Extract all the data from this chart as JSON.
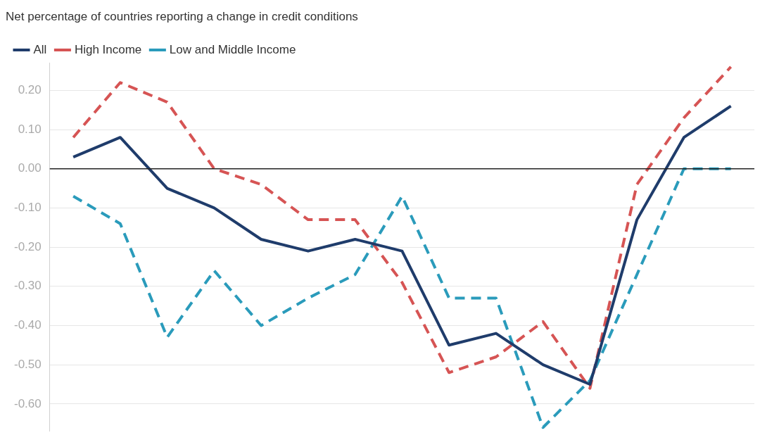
{
  "chart_data": {
    "type": "line",
    "title": "Net percentage of countries reporting a change in credit conditions",
    "categories": [
      null,
      null,
      null,
      null,
      null,
      null,
      null,
      null,
      null,
      null,
      null,
      null,
      null,
      null,
      null
    ],
    "series": [
      {
        "name": "All",
        "color": "#1f3c6b",
        "line_style": "solid",
        "values": [
          0.03,
          0.08,
          -0.05,
          -0.1,
          -0.18,
          -0.21,
          -0.18,
          -0.21,
          -0.45,
          -0.42,
          -0.5,
          -0.55,
          -0.13,
          0.08,
          0.16
        ]
      },
      {
        "name": "High Income",
        "color": "#d65454",
        "line_style": "dashed",
        "values": [
          0.08,
          0.22,
          0.17,
          0.0,
          -0.04,
          -0.13,
          -0.13,
          -0.29,
          -0.52,
          -0.48,
          -0.39,
          -0.56,
          -0.04,
          0.13,
          0.26
        ]
      },
      {
        "name": "Low and Middle Income",
        "color": "#2a9bbb",
        "line_style": "dashed",
        "values": [
          -0.07,
          -0.14,
          -0.43,
          -0.26,
          -0.4,
          -0.33,
          -0.27,
          -0.07,
          -0.33,
          -0.33,
          -0.66,
          -0.54,
          -0.27,
          0.0,
          0.0
        ]
      }
    ],
    "ylim": [
      -0.67,
      0.27
    ],
    "yticks": [
      {
        "value": -0.6,
        "label": "-0.60"
      },
      {
        "value": -0.5,
        "label": "-0.50"
      },
      {
        "value": -0.4,
        "label": "-0.40"
      },
      {
        "value": -0.3,
        "label": "-0.30"
      },
      {
        "value": -0.2,
        "label": "-0.20"
      },
      {
        "value": -0.1,
        "label": "-0.10"
      },
      {
        "value": 0,
        "label": "0.00"
      },
      {
        "value": 0.1,
        "label": "0.10"
      },
      {
        "value": 0.2,
        "label": "0.20"
      }
    ],
    "ref_lines": [
      {
        "axis": "y",
        "value": 0,
        "color": "#222222"
      }
    ],
    "grid": "y",
    "legend": "top left",
    "tick_labels": "y",
    "marker": "none"
  }
}
